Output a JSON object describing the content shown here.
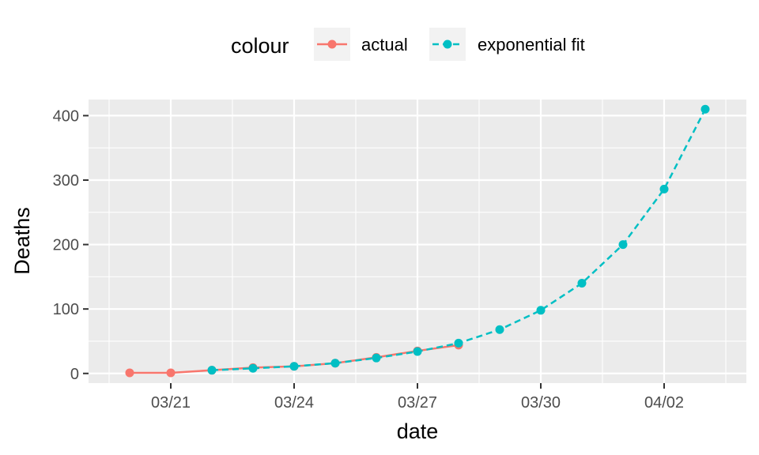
{
  "chart_data": {
    "type": "line",
    "xlabel": "date",
    "ylabel": "Deaths",
    "legend": {
      "title": "colour",
      "position": "top",
      "entries": [
        "actual",
        "exponential fit"
      ]
    },
    "xlim": [
      "2020-03-19",
      "2020-04-04"
    ],
    "ylim": [
      -15,
      425
    ],
    "x_ticks": [
      {
        "date": "2020-03-21",
        "label": "03/21"
      },
      {
        "date": "2020-03-24",
        "label": "03/24"
      },
      {
        "date": "2020-03-27",
        "label": "03/27"
      },
      {
        "date": "2020-03-30",
        "label": "03/30"
      },
      {
        "date": "2020-04-02",
        "label": "04/02"
      }
    ],
    "y_ticks": [
      0,
      100,
      200,
      300,
      400
    ],
    "y_tick_labels": [
      "0",
      "100",
      "200",
      "300",
      "400"
    ],
    "grid": true,
    "series": [
      {
        "name": "actual",
        "color": "#F8766D",
        "line": "solid",
        "points": [
          {
            "x": "2020-03-20",
            "y": 1
          },
          {
            "x": "2020-03-21",
            "y": 1
          },
          {
            "x": "2020-03-22",
            "y": 5
          },
          {
            "x": "2020-03-23",
            "y": 9
          },
          {
            "x": "2020-03-24",
            "y": 11
          },
          {
            "x": "2020-03-25",
            "y": 16
          },
          {
            "x": "2020-03-26",
            "y": 25
          },
          {
            "x": "2020-03-27",
            "y": 35
          },
          {
            "x": "2020-03-28",
            "y": 44
          }
        ]
      },
      {
        "name": "exponential fit",
        "color": "#00BFC4",
        "line": "dashed",
        "points": [
          {
            "x": "2020-03-22",
            "y": 5
          },
          {
            "x": "2020-03-23",
            "y": 8
          },
          {
            "x": "2020-03-24",
            "y": 11
          },
          {
            "x": "2020-03-25",
            "y": 16
          },
          {
            "x": "2020-03-26",
            "y": 24
          },
          {
            "x": "2020-03-27",
            "y": 34
          },
          {
            "x": "2020-03-28",
            "y": 47
          },
          {
            "x": "2020-03-29",
            "y": 68
          },
          {
            "x": "2020-03-30",
            "y": 98
          },
          {
            "x": "2020-03-31",
            "y": 140
          },
          {
            "x": "2020-04-01",
            "y": 200
          },
          {
            "x": "2020-04-02",
            "y": 286
          },
          {
            "x": "2020-04-03",
            "y": 410
          }
        ]
      }
    ]
  }
}
